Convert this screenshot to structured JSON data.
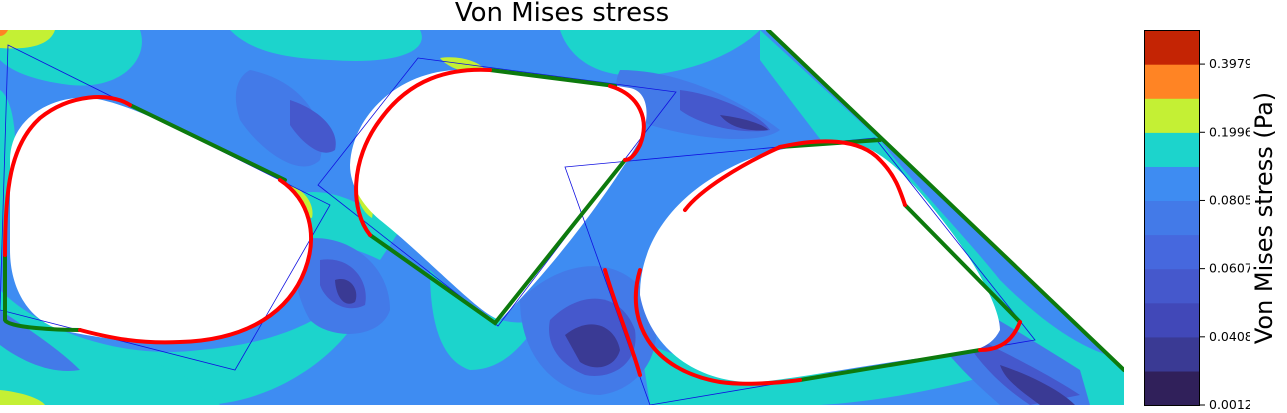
{
  "chart_data": {
    "type": "heatmap",
    "title": "Von Mises stress",
    "colorbar": {
      "label": "Von Mises stress (Pa)",
      "tick_labels": [
        "0.0012",
        "0.0408",
        "0.0607",
        "0.0805",
        "0.1996",
        "0.3979"
      ],
      "tick_values": [
        0.0012,
        0.0408,
        0.0607,
        0.0805,
        0.1996,
        0.3979
      ],
      "levels": [
        {
          "min": 0.0012,
          "max": 0.0209,
          "color": "#30205a"
        },
        {
          "min": 0.0209,
          "max": 0.0408,
          "color": "#3a3a94"
        },
        {
          "min": 0.0408,
          "max": 0.0508,
          "color": "#4148b8"
        },
        {
          "min": 0.0508,
          "max": 0.0607,
          "color": "#4558cc"
        },
        {
          "min": 0.0607,
          "max": 0.0706,
          "color": "#4668de"
        },
        {
          "min": 0.0706,
          "max": 0.0805,
          "color": "#437ae8"
        },
        {
          "min": 0.0805,
          "max": 0.14,
          "color": "#3e8cf2"
        },
        {
          "min": 0.14,
          "max": 0.1996,
          "color": "#1cd4cc"
        },
        {
          "min": 0.1996,
          "max": 0.299,
          "color": "#c4f034"
        },
        {
          "min": 0.299,
          "max": 0.3979,
          "color": "#ff8424"
        },
        {
          "min": 0.3979,
          "max": 0.498,
          "color": "#c42404"
        }
      ]
    },
    "overlays": {
      "fillet_color": "#ff0000",
      "straight_edge_color": "#0d7a0d",
      "outline_color": "#1010e0"
    }
  }
}
